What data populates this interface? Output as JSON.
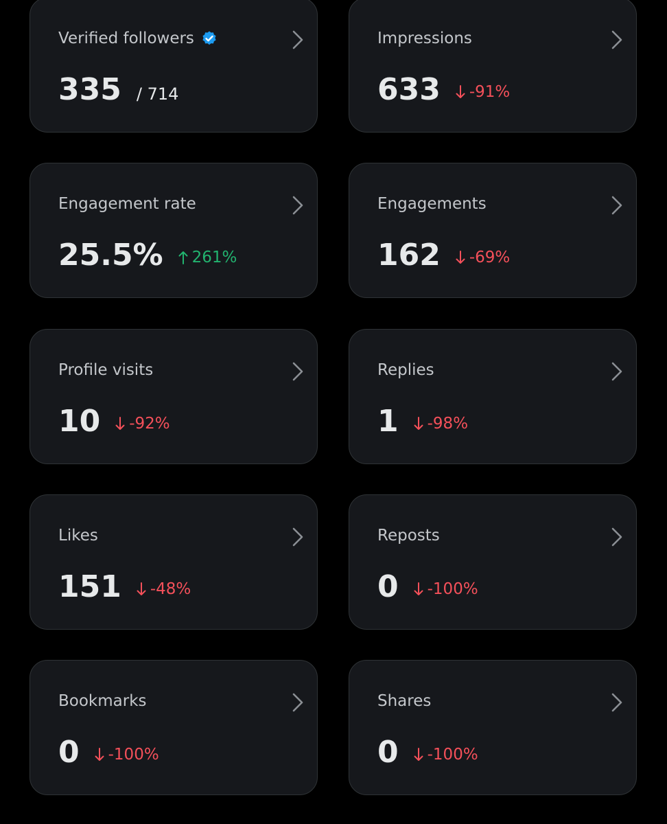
{
  "cards": [
    {
      "label": "Verified followers",
      "value": "335",
      "secondary": "/ 714",
      "badge": true
    },
    {
      "label": "Impressions",
      "value": "633",
      "change": "-91%",
      "trend": "down"
    },
    {
      "label": "Engagement rate",
      "value": "25.5%",
      "change": "261%",
      "trend": "up"
    },
    {
      "label": "Engagements",
      "value": "162",
      "change": "-69%",
      "trend": "down"
    },
    {
      "label": "Profile visits",
      "value": "10",
      "change": "-92%",
      "trend": "down"
    },
    {
      "label": "Replies",
      "value": "1",
      "change": "-98%",
      "trend": "down"
    },
    {
      "label": "Likes",
      "value": "151",
      "change": "-48%",
      "trend": "down"
    },
    {
      "label": "Reposts",
      "value": "0",
      "change": "-100%",
      "trend": "down"
    },
    {
      "label": "Bookmarks",
      "value": "0",
      "change": "-100%",
      "trend": "down"
    },
    {
      "label": "Shares",
      "value": "0",
      "change": "-100%",
      "trend": "down"
    }
  ]
}
